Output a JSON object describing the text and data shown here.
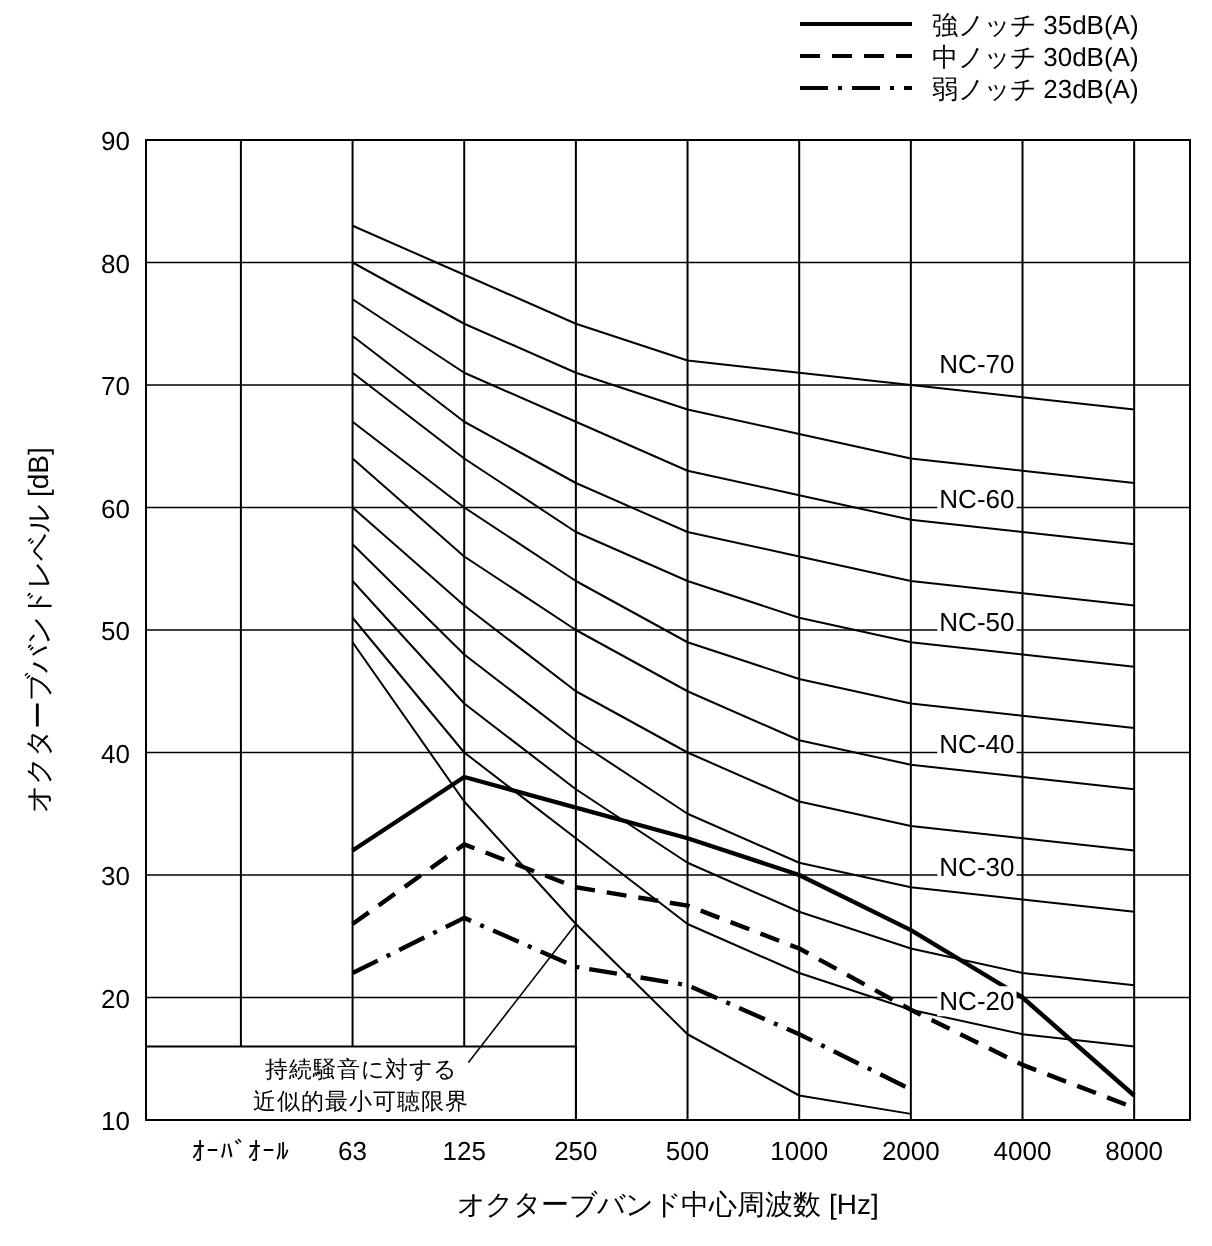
{
  "chart_data": {
    "type": "line",
    "xlabel": "オクターブバンド中心周波数 [Hz]",
    "ylabel": "オクターブバンドレベル [dB]",
    "categories": [
      "ｵｰﾊﾞｵｰﾙ",
      "63",
      "125",
      "250",
      "500",
      "1000",
      "2000",
      "4000",
      "8000"
    ],
    "ylim": [
      10,
      90
    ],
    "yticks": [
      10,
      20,
      30,
      40,
      50,
      60,
      70,
      80,
      90
    ],
    "grid": true,
    "legend": "top right",
    "series": [
      {
        "color": "#000000",
        "line_style": "solid",
        "values": [
          null,
          83,
          79,
          75,
          72,
          71,
          70,
          69,
          68
        ]
      },
      {
        "color": "#000000",
        "line_style": "solid",
        "values": [
          null,
          80,
          75,
          71,
          68,
          66,
          64,
          63,
          62
        ]
      },
      {
        "color": "#000000",
        "line_style": "solid",
        "values": [
          null,
          77,
          71,
          67,
          63,
          61,
          59,
          58,
          57
        ]
      },
      {
        "color": "#000000",
        "line_style": "solid",
        "values": [
          null,
          74,
          67,
          62,
          58,
          56,
          54,
          53,
          52
        ]
      },
      {
        "color": "#000000",
        "line_style": "solid",
        "values": [
          null,
          71,
          64,
          58,
          54,
          51,
          49,
          48,
          47
        ]
      },
      {
        "color": "#000000",
        "line_style": "solid",
        "values": [
          null,
          67,
          60,
          54,
          49,
          46,
          44,
          43,
          42
        ]
      },
      {
        "color": "#000000",
        "line_style": "solid",
        "values": [
          null,
          64,
          56,
          50,
          45,
          41,
          39,
          38,
          37
        ]
      },
      {
        "color": "#000000",
        "line_style": "solid",
        "values": [
          null,
          60,
          52,
          45,
          40,
          36,
          34,
          33,
          32
        ]
      },
      {
        "color": "#000000",
        "line_style": "solid",
        "values": [
          null,
          57,
          48,
          41,
          35,
          31,
          29,
          28,
          27
        ]
      },
      {
        "color": "#000000",
        "line_style": "solid",
        "values": [
          null,
          54,
          44,
          37,
          31,
          27,
          24,
          22,
          21
        ]
      },
      {
        "color": "#000000",
        "line_style": "solid",
        "values": [
          null,
          51,
          40,
          33,
          26,
          22,
          19,
          17,
          16
        ]
      },
      {
        "color": "#000000",
        "line_style": "solid",
        "values": [
          null,
          49,
          36,
          26,
          17,
          12,
          10.5,
          null,
          null
        ]
      },
      {
        "name": "強ノッチ 35dB(A)",
        "color": "#000000",
        "line_style": "solid",
        "values": [
          null,
          32,
          38,
          35.5,
          33,
          30,
          25.5,
          20,
          12
        ]
      },
      {
        "name": "中ノッチ 30dB(A)",
        "color": "#000000",
        "line_style": "dashed",
        "values": [
          null,
          26,
          32.5,
          29,
          27.5,
          24,
          19,
          14.5,
          11
        ]
      },
      {
        "name": "弱ノッチ 23dB(A)",
        "color": "#000000",
        "line_style": "dashdot",
        "values": [
          null,
          22,
          26.5,
          22.5,
          21,
          17,
          12.5,
          null,
          null
        ]
      }
    ],
    "annotations": [
      {
        "text": "NC-70",
        "x": "4000",
        "y": 69
      },
      {
        "text": "NC-60",
        "x": "4000",
        "y": 58
      },
      {
        "text": "NC-50",
        "x": "4000",
        "y": 48
      },
      {
        "text": "NC-40",
        "x": "4000",
        "y": 38
      },
      {
        "text": "NC-30",
        "x": "4000",
        "y": 28
      },
      {
        "text": "NC-20",
        "x": "4000",
        "y": 17
      },
      {
        "text": "持続騒音に対する近似的最小可聴限界",
        "x": "250",
        "y": 26
      }
    ]
  }
}
